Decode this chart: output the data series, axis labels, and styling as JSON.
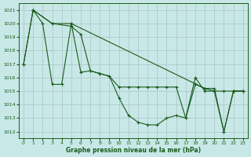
{
  "title": "Graphe pression niveau de la mer (hPa)",
  "background_color": "#c8e8e8",
  "grid_color": "#b0c8c8",
  "line_color": "#1a5c1a",
  "xlim": [
    -0.5,
    23.5
  ],
  "ylim": [
    1011.5,
    1021.5
  ],
  "yticks": [
    1012,
    1013,
    1014,
    1015,
    1016,
    1017,
    1018,
    1019,
    1020,
    1021
  ],
  "xticks": [
    0,
    1,
    2,
    3,
    4,
    5,
    6,
    7,
    8,
    9,
    10,
    11,
    12,
    13,
    14,
    15,
    16,
    17,
    18,
    19,
    20,
    21,
    22,
    23
  ],
  "series1_x": [
    0,
    1,
    2,
    3,
    4,
    5,
    6,
    7,
    8,
    9,
    10,
    11,
    12,
    13,
    14,
    15,
    16,
    17,
    18,
    19,
    20,
    21,
    22,
    23
  ],
  "series1_y": [
    1017.0,
    1021.0,
    1020.0,
    1015.5,
    1015.5,
    1020.0,
    1016.4,
    1016.5,
    1016.3,
    1016.1,
    1014.5,
    1013.2,
    1012.7,
    1012.5,
    1012.5,
    1013.0,
    1013.2,
    1013.0,
    1016.0,
    1015.0,
    1015.0,
    1012.0,
    1015.0,
    1015.0
  ],
  "series2_x": [
    1,
    3,
    5,
    19,
    20,
    21,
    22,
    23
  ],
  "series2_y": [
    1021.0,
    1020.0,
    1020.0,
    1015.2,
    1015.0,
    1015.0,
    1015.0,
    1015.0
  ],
  "series3_x": [
    0,
    1,
    3,
    5,
    6,
    7,
    8,
    9,
    10,
    11,
    12,
    13,
    14,
    15,
    16,
    17,
    18,
    19,
    20,
    21,
    22,
    23
  ],
  "series3_y": [
    1017.0,
    1021.0,
    1020.0,
    1019.8,
    1019.2,
    1016.5,
    1016.3,
    1016.1,
    1015.3,
    1015.3,
    1015.3,
    1015.3,
    1015.3,
    1015.3,
    1015.3,
    1013.0,
    1015.5,
    1015.2,
    1015.2,
    1012.0,
    1015.0,
    1015.0
  ]
}
